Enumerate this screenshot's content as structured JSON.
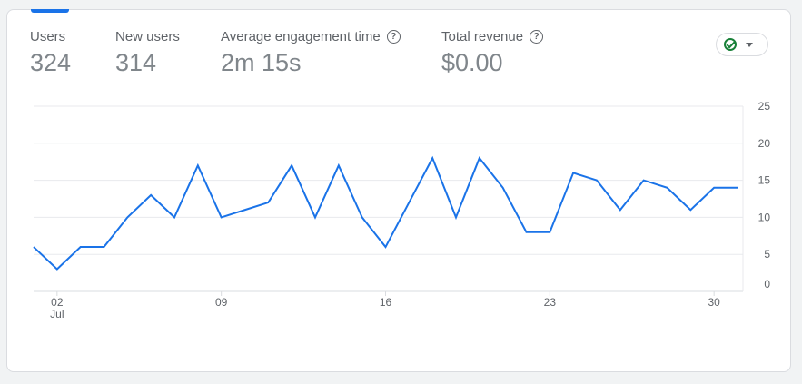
{
  "metrics": [
    {
      "label": "Users",
      "value": "324",
      "active": true,
      "help": false
    },
    {
      "label": "New users",
      "value": "314",
      "active": false,
      "help": false
    },
    {
      "label": "Average engagement time",
      "value": "2m 15s",
      "active": false,
      "help": true
    },
    {
      "label": "Total revenue",
      "value": "$0.00",
      "active": false,
      "help": true
    }
  ],
  "status_button": {
    "icon": "check-circle-icon",
    "color": "#188038"
  },
  "colors": {
    "line": "#1a73e8",
    "accent": "#1a73e8",
    "grid": "#e8eaed"
  },
  "chart_data": {
    "type": "line",
    "xlabel": "",
    "ylabel": "",
    "ylim": [
      0,
      25
    ],
    "yticks": [
      "0",
      "5",
      "10",
      "15",
      "20",
      "25"
    ],
    "xticks": [
      {
        "day": 2,
        "label": "02",
        "sublabel": "Jul"
      },
      {
        "day": 9,
        "label": "09",
        "sublabel": ""
      },
      {
        "day": 16,
        "label": "16",
        "sublabel": ""
      },
      {
        "day": 23,
        "label": "23",
        "sublabel": ""
      },
      {
        "day": 30,
        "label": "30",
        "sublabel": ""
      }
    ],
    "x": [
      1,
      2,
      3,
      4,
      5,
      6,
      7,
      8,
      9,
      10,
      11,
      12,
      13,
      14,
      15,
      16,
      17,
      18,
      19,
      20,
      21,
      22,
      23,
      24,
      25,
      26,
      27,
      28,
      29,
      30,
      31
    ],
    "series": [
      {
        "values": [
          6,
          3,
          6,
          6,
          10,
          13,
          10,
          17,
          10,
          11,
          12,
          17,
          10,
          17,
          10,
          6,
          12,
          18,
          10,
          18,
          14,
          8,
          8,
          16,
          15,
          11,
          15,
          14,
          11,
          14,
          14
        ]
      }
    ],
    "grid": true
  }
}
